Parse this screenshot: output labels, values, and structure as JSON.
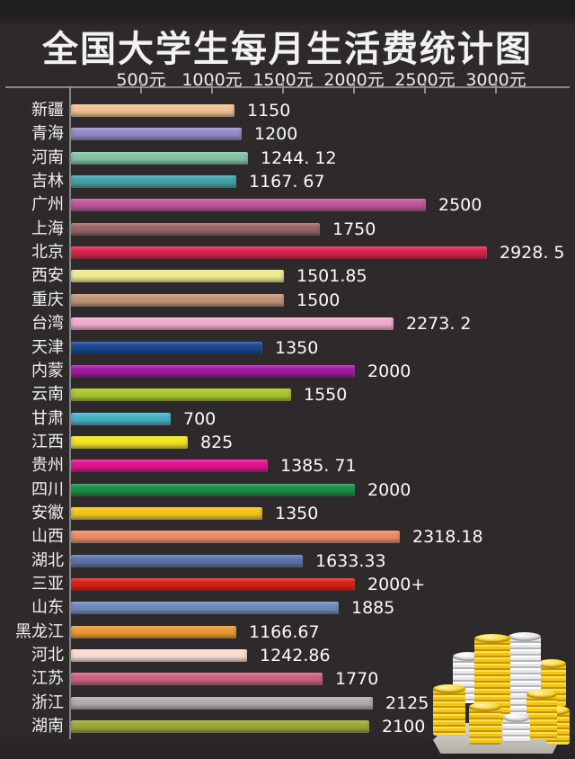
{
  "title": "全国大学生每月生活费统计图",
  "x_axis": {
    "tick_values": [
      500,
      1000,
      1500,
      2000,
      2500,
      3000
    ],
    "tick_labels": [
      "500元",
      "1000元",
      "1500元",
      "2000元",
      "2500元",
      "3000元"
    ]
  },
  "chart_data": {
    "type": "bar",
    "orientation": "horizontal",
    "title": "全国大学生每月生活费统计图",
    "xlabel": "",
    "ylabel": "",
    "xlim": [
      0,
      3000
    ],
    "grid": false,
    "legend": false,
    "axis_position": "top",
    "categories": [
      "新疆",
      "青海",
      "河南",
      "吉林",
      "广州",
      "上海",
      "北京",
      "西安",
      "重庆",
      "台湾",
      "天津",
      "内蒙",
      "云南",
      "甘肃",
      "江西",
      "贵州",
      "四川",
      "安徽",
      "山西",
      "湖北",
      "三亚",
      "山东",
      "黑龙江",
      "河北",
      "江苏",
      "浙江",
      "湖南"
    ],
    "values": [
      1150,
      1200,
      1244.12,
      1167.67,
      2500,
      1750,
      2928.5,
      1501.85,
      1500,
      2273.2,
      1350,
      2000,
      1550,
      700,
      825,
      1385.71,
      2000,
      1350,
      2318.18,
      1633.33,
      2000,
      1885,
      1166.67,
      1242.86,
      1770,
      2125,
      2100
    ],
    "value_labels": [
      "1150",
      "1200",
      "1244. 12",
      "1167. 67",
      "2500",
      "1750",
      "2928. 5",
      "1501.85",
      "1500",
      "2273. 2",
      "1350",
      "2000",
      "1550",
      "700",
      "825",
      "1385. 71",
      "2000",
      "1350",
      "2318.18",
      "1633.33",
      "2000+",
      "1885",
      "1166.67",
      "1242.86",
      "1770",
      "2125",
      "2100"
    ],
    "bar_colors": [
      "#f0c092",
      "#948ac6",
      "#82c2a2",
      "#42a2a8",
      "#bd559a",
      "#996469",
      "#d8244f",
      "#eeea92",
      "#c09478",
      "#f0accd",
      "#1c468f",
      "#a119a0",
      "#a7c42e",
      "#48b0c6",
      "#f2e223",
      "#e01490",
      "#188f47",
      "#f0c41e",
      "#e98b68",
      "#5a74ab",
      "#d81f17",
      "#7088bc",
      "#ea9a30",
      "#f6ddd1",
      "#cd6180",
      "#b2aaae",
      "#9ca73c"
    ]
  },
  "colors": {
    "background": "#2e2a2c",
    "title_text": "#f2f2f2",
    "axis_line": "#969696",
    "label_text": "#f0f0f0"
  },
  "decoration": {
    "coins_illustration": "stacks of gold and silver coins on a platform"
  }
}
